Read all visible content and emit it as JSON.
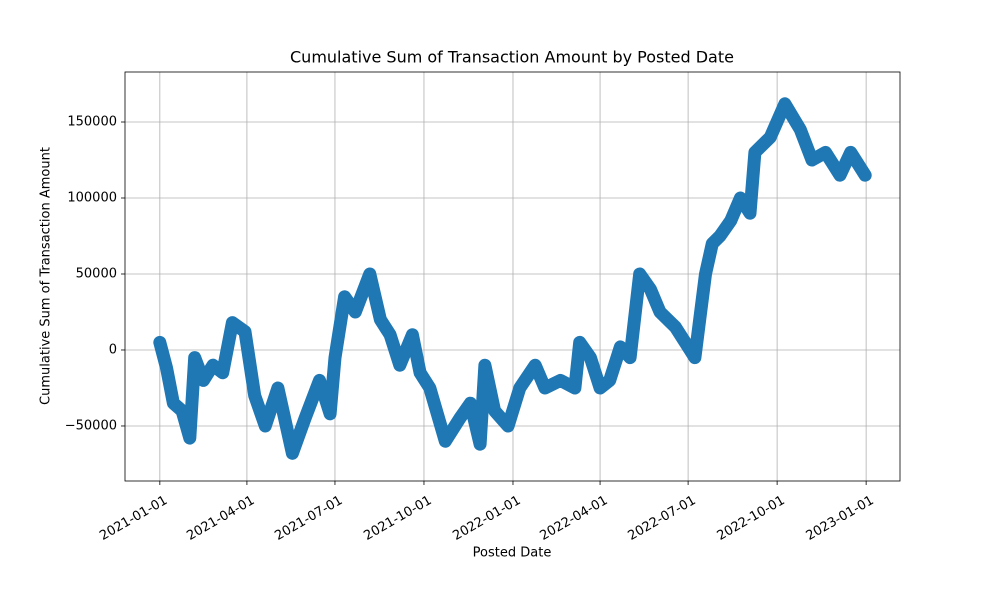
{
  "chart_data": {
    "type": "line",
    "title": "Cumulative Sum of Transaction Amount by Posted Date",
    "x_label": "Posted Date",
    "y_label": "Cumulative Sum of Transaction Amount",
    "x": [
      "2021-01-01",
      "2021-01-08",
      "2021-01-15",
      "2021-01-24",
      "2021-02-01",
      "2021-02-06",
      "2021-02-15",
      "2021-02-25",
      "2021-03-07",
      "2021-03-17",
      "2021-03-30",
      "2021-04-09",
      "2021-04-20",
      "2021-05-03",
      "2021-05-18",
      "2021-05-31",
      "2021-06-15",
      "2021-06-26",
      "2021-07-01",
      "2021-07-11",
      "2021-07-22",
      "2021-08-06",
      "2021-08-17",
      "2021-08-27",
      "2021-09-06",
      "2021-09-19",
      "2021-09-27",
      "2021-10-07",
      "2021-10-23",
      "2021-11-07",
      "2021-11-18",
      "2021-11-28",
      "2021-12-03",
      "2021-12-13",
      "2021-12-27",
      "2022-01-08",
      "2022-01-24",
      "2022-02-03",
      "2022-02-19",
      "2022-03-06",
      "2022-03-11",
      "2022-03-22",
      "2022-04-01",
      "2022-04-11",
      "2022-04-22",
      "2022-05-02",
      "2022-05-12",
      "2022-05-23",
      "2022-06-02",
      "2022-06-18",
      "2022-06-28",
      "2022-07-08",
      "2022-07-13",
      "2022-07-19",
      "2022-07-26",
      "2022-08-03",
      "2022-08-14",
      "2022-08-24",
      "2022-09-03",
      "2022-09-08",
      "2022-09-24",
      "2022-10-09",
      "2022-10-25",
      "2022-11-06",
      "2022-11-20",
      "2022-12-05",
      "2022-12-16",
      "2022-12-31"
    ],
    "series": [
      {
        "name": "Cumulative Sum",
        "color": "#1f77b4",
        "values": [
          5000,
          -12000,
          -35000,
          -40000,
          -58000,
          -5000,
          -20000,
          -10000,
          -15000,
          18000,
          12000,
          -30000,
          -50000,
          -25000,
          -68000,
          -45000,
          -20000,
          -42000,
          -5000,
          35000,
          25000,
          50000,
          20000,
          10000,
          -10000,
          10000,
          -15000,
          -25000,
          -60000,
          -45000,
          -35000,
          -62000,
          -10000,
          -40000,
          -50000,
          -25000,
          -10000,
          -25000,
          -20000,
          -25000,
          5000,
          -5000,
          -25000,
          -20000,
          2000,
          -5000,
          50000,
          40000,
          25000,
          15000,
          5000,
          -5000,
          20000,
          50000,
          70000,
          75000,
          85000,
          100000,
          90000,
          130000,
          140000,
          162000,
          145000,
          125000,
          130000,
          115000,
          130000,
          115000
        ]
      }
    ],
    "xlim": [
      "2020-11-26",
      "2023-02-05"
    ],
    "xticks": [
      "2021-01-01",
      "2021-04-01",
      "2021-07-01",
      "2021-10-01",
      "2022-01-01",
      "2022-04-01",
      "2022-07-01",
      "2022-10-01",
      "2023-01-01"
    ],
    "ylim": [
      -86200,
      182900
    ],
    "yticks": [
      {
        "value": -50000,
        "label": "−50000"
      },
      0,
      50000,
      100000,
      150000
    ],
    "grid": true
  }
}
